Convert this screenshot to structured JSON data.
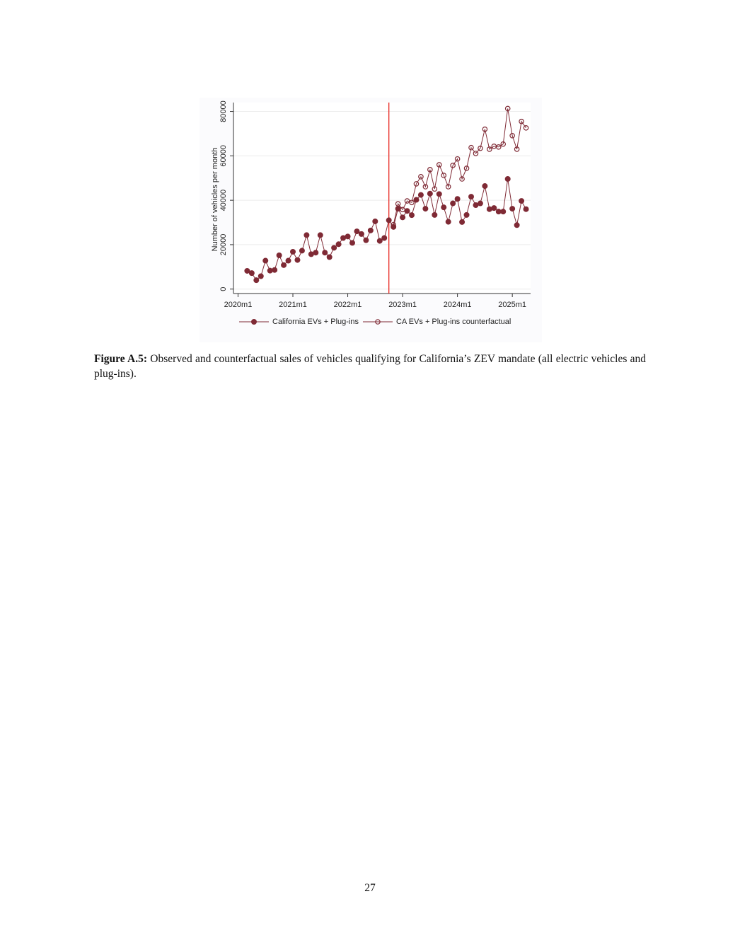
{
  "chart_data": {
    "type": "line",
    "y_label": "Number of vehicles per month",
    "x": [
      722,
      723,
      724,
      725,
      726,
      727,
      728,
      729,
      730,
      731,
      732,
      733,
      734,
      735,
      736,
      737,
      738,
      739,
      740,
      741,
      742,
      743,
      744,
      745,
      746,
      747,
      748,
      749,
      750,
      751,
      752,
      753,
      754,
      755,
      756,
      757,
      758,
      759,
      760,
      761,
      762,
      763,
      764,
      765,
      766,
      767,
      768,
      769,
      770,
      771,
      772,
      773,
      774,
      775,
      776,
      777,
      778,
      779,
      780,
      781,
      782,
      783
    ],
    "series": [
      {
        "name": "California EVs + Plug-ins",
        "color": "#7f2a35",
        "marker": "filled",
        "values": [
          8200,
          7200,
          4000,
          5800,
          12800,
          8300,
          8600,
          15200,
          10800,
          12800,
          16800,
          13100,
          17300,
          24300,
          15700,
          16400,
          24300,
          16400,
          14400,
          18600,
          20200,
          23000,
          23700,
          20800,
          26000,
          24800,
          22000,
          26400,
          30500,
          21700,
          23000,
          31000,
          28000,
          36200,
          32300,
          35200,
          33300,
          40200,
          42400,
          36200,
          43000,
          33400,
          42800,
          36800,
          30300,
          38600,
          40600,
          30200,
          33400,
          41600,
          37800,
          38600,
          46400,
          36000,
          36500,
          34900,
          34900,
          49600,
          36200,
          28800,
          39700,
          36000
        ]
      },
      {
        "name": "CA EVs + Plug-ins counterfactual",
        "color": "#7f2a35",
        "marker": "hollow",
        "values": [
          null,
          null,
          null,
          null,
          null,
          null,
          null,
          null,
          null,
          null,
          null,
          null,
          null,
          null,
          null,
          null,
          null,
          null,
          null,
          null,
          null,
          null,
          null,
          null,
          null,
          null,
          null,
          null,
          null,
          null,
          null,
          null,
          29000,
          38400,
          35800,
          39700,
          39000,
          47400,
          50600,
          46100,
          53800,
          45100,
          56000,
          51200,
          46100,
          55700,
          58600,
          49600,
          54400,
          63700,
          61100,
          63400,
          72000,
          63000,
          64300,
          64000,
          65300,
          81300,
          69100,
          63000,
          75500,
          72600
        ]
      }
    ],
    "xlim": [
      719,
      784
    ],
    "xticks": [
      {
        "value": 720,
        "label": "2020m1"
      },
      {
        "value": 732,
        "label": "2021m1"
      },
      {
        "value": 744,
        "label": "2022m1"
      },
      {
        "value": 756,
        "label": "2023m1"
      },
      {
        "value": 768,
        "label": "2024m1"
      },
      {
        "value": 780,
        "label": "2025m1"
      }
    ],
    "ylim": [
      -2000,
      84000
    ],
    "yticks": [
      0,
      20000,
      40000,
      60000,
      80000
    ],
    "grid": true,
    "vline": {
      "x": 753,
      "color": "#e8251f"
    },
    "legend": "bottom"
  },
  "caption": {
    "label": "Figure A.5:",
    "text": "Observed and counterfactual sales of vehicles qualifying for California’s ZEV mandate (all electric vehicles and plug-ins)."
  },
  "page_number": "27"
}
